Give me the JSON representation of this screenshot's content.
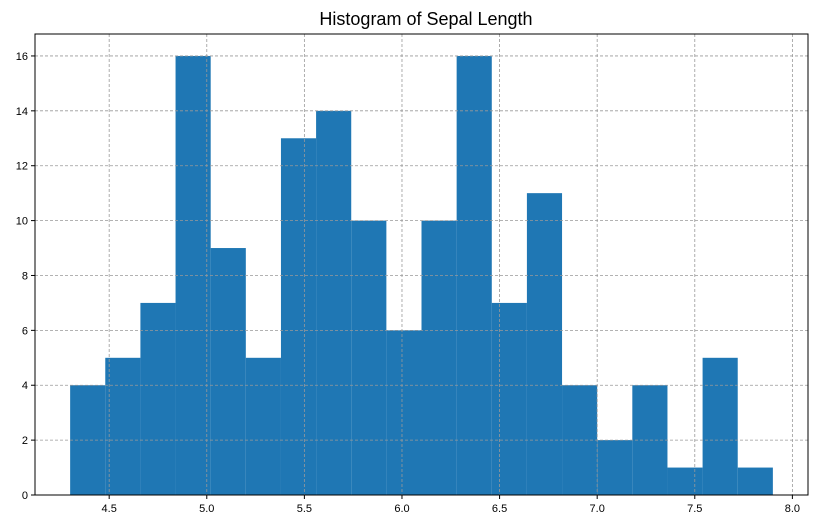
{
  "chart_data": {
    "type": "bar",
    "title": "Histogram of Sepal Length",
    "xlabel": "",
    "ylabel": "",
    "bin_edges": [
      4.3,
      4.48,
      4.66,
      4.84,
      5.02,
      5.2,
      5.38,
      5.56,
      5.74,
      5.92,
      6.1,
      6.28,
      6.46,
      6.64,
      6.82,
      7.0,
      7.18,
      7.36,
      7.54,
      7.72,
      7.9
    ],
    "values": [
      4,
      5,
      7,
      16,
      9,
      5,
      13,
      14,
      10,
      6,
      10,
      16,
      7,
      11,
      4,
      2,
      4,
      1,
      5,
      1
    ],
    "xlim": [
      4.12,
      8.08
    ],
    "ylim": [
      0,
      16.8
    ],
    "xticks": [
      4.5,
      5.0,
      5.5,
      6.0,
      6.5,
      7.0,
      7.5,
      8.0
    ],
    "yticks": [
      0,
      2,
      4,
      6,
      8,
      10,
      12,
      14,
      16
    ],
    "grid": true,
    "bar_color": "#1f77b4",
    "grid_color": "#999999"
  }
}
